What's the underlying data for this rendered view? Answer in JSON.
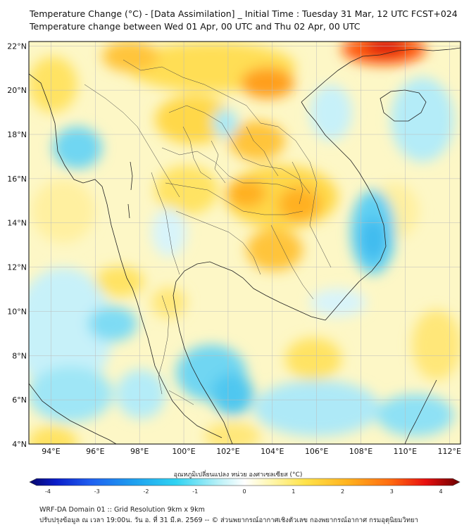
{
  "title_line1": "Temperature Change (°C) - [Data Assimilation] _ Initial Time : Tuesday 31 Mar, 12 UTC FCST+024",
  "title_line2": "Temperature change between Wed 01 Apr, 00 UTC and Thu 02 Apr, 00 UTC",
  "map": {
    "lat_labels": [
      "22°N",
      "20°N",
      "18°N",
      "16°N",
      "14°N",
      "12°N",
      "10°N",
      "8°N",
      "6°N",
      "4°N"
    ],
    "lon_labels": [
      "94°E",
      "96°E",
      "98°E",
      "100°E",
      "102°E",
      "104°E",
      "106°E",
      "108°E",
      "110°E",
      "112°E"
    ],
    "lat_values": [
      22,
      20,
      18,
      16,
      14,
      12,
      10,
      8,
      6,
      4
    ],
    "lon_values": [
      94,
      96,
      98,
      100,
      102,
      104,
      106,
      108,
      110,
      112
    ],
    "extent": {
      "lon_min": 93,
      "lon_max": 112.5,
      "lat_min": 4,
      "lat_max": 22.2
    }
  },
  "colorbar": {
    "label": "อุณหภูมิเปลี่ยนแปลง หน่วย องศาเซลเซียส (°C)",
    "ticks": [
      "-4",
      "-3",
      "-2",
      "-1",
      "0",
      "1",
      "2",
      "3",
      "4"
    ],
    "tick_values": [
      -4,
      -3,
      -2,
      -1,
      0,
      1,
      2,
      3,
      4
    ],
    "range": [
      -4,
      4
    ]
  },
  "footer_line1": "WRF-DA Domain 01 :: Grid Resolution 9km x 9km",
  "footer_line2": "ปรับปรุงข้อมูล ณ เวลา 19:00น. วัน อ. ที่ 31 มี.ค. 2569 -- © ส่วนพยากรณ์อากาศเชิงตัวเลข กองพยากรณ์อากาศ กรมอุตุนิยมวิทยา"
}
